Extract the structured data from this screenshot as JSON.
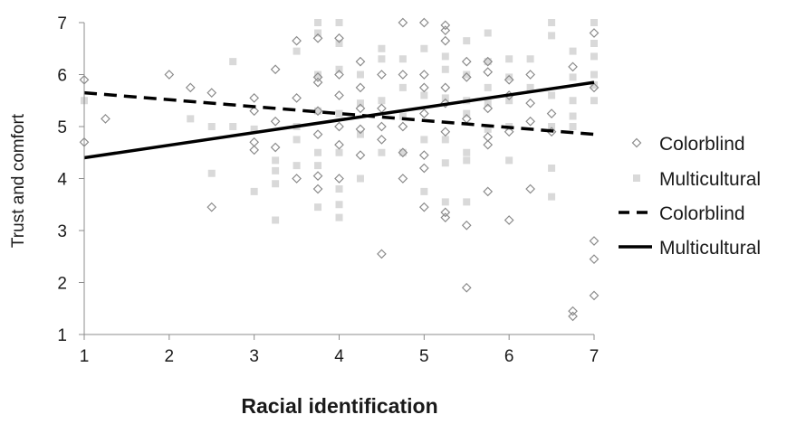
{
  "chart_data": {
    "type": "scatter",
    "title": "",
    "xlabel": "Racial identification",
    "ylabel": "Trust and comfort",
    "xlim": [
      1,
      7
    ],
    "ylim": [
      1,
      7
    ],
    "x_ticks": [
      1,
      2,
      3,
      4,
      5,
      6,
      7
    ],
    "y_ticks": [
      1,
      2,
      3,
      4,
      5,
      6,
      7
    ],
    "grid": false,
    "legend_position": "right",
    "series": [
      {
        "name": "Colorblind",
        "kind": "points",
        "marker": "diamond-open",
        "color": "#8a8a8a",
        "points": [
          [
            1,
            5.9
          ],
          [
            1,
            4.7
          ],
          [
            1.25,
            5.15
          ],
          [
            2,
            6.0
          ],
          [
            2.25,
            5.75
          ],
          [
            2.5,
            5.65
          ],
          [
            2.5,
            3.45
          ],
          [
            3,
            5.55
          ],
          [
            3,
            5.3
          ],
          [
            3,
            4.7
          ],
          [
            3,
            4.55
          ],
          [
            3.25,
            6.1
          ],
          [
            3.25,
            5.1
          ],
          [
            3.25,
            4.6
          ],
          [
            3.5,
            6.65
          ],
          [
            3.5,
            5.55
          ],
          [
            3.5,
            4.0
          ],
          [
            3.75,
            6.7
          ],
          [
            3.75,
            5.95
          ],
          [
            3.75,
            5.85
          ],
          [
            3.75,
            5.3
          ],
          [
            3.75,
            4.85
          ],
          [
            3.75,
            4.05
          ],
          [
            3.75,
            3.8
          ],
          [
            4,
            6.7
          ],
          [
            4,
            6.0
          ],
          [
            4,
            5.6
          ],
          [
            4,
            5.0
          ],
          [
            4,
            4.65
          ],
          [
            4,
            4.0
          ],
          [
            4.25,
            6.25
          ],
          [
            4.25,
            5.75
          ],
          [
            4.25,
            5.35
          ],
          [
            4.25,
            4.95
          ],
          [
            4.25,
            4.45
          ],
          [
            4.5,
            6.0
          ],
          [
            4.5,
            5.35
          ],
          [
            4.5,
            5.0
          ],
          [
            4.5,
            4.75
          ],
          [
            4.5,
            2.55
          ],
          [
            4.75,
            7.0
          ],
          [
            4.75,
            6.0
          ],
          [
            4.75,
            5.0
          ],
          [
            4.75,
            4.5
          ],
          [
            4.75,
            4.0
          ],
          [
            5,
            7.0
          ],
          [
            5,
            6.0
          ],
          [
            5,
            5.75
          ],
          [
            5,
            5.25
          ],
          [
            5,
            4.45
          ],
          [
            5,
            4.2
          ],
          [
            5,
            3.45
          ],
          [
            5.25,
            6.95
          ],
          [
            5.25,
            6.85
          ],
          [
            5.25,
            6.65
          ],
          [
            5.25,
            5.75
          ],
          [
            5.25,
            5.45
          ],
          [
            5.25,
            4.9
          ],
          [
            5.25,
            3.35
          ],
          [
            5.25,
            3.25
          ],
          [
            5.5,
            6.25
          ],
          [
            5.5,
            5.95
          ],
          [
            5.5,
            5.15
          ],
          [
            5.5,
            3.1
          ],
          [
            5.5,
            1.9
          ],
          [
            5.75,
            6.25
          ],
          [
            5.75,
            6.05
          ],
          [
            5.75,
            5.35
          ],
          [
            5.75,
            4.8
          ],
          [
            5.75,
            4.65
          ],
          [
            5.75,
            3.75
          ],
          [
            6,
            5.9
          ],
          [
            6,
            5.6
          ],
          [
            6,
            4.9
          ],
          [
            6,
            3.2
          ],
          [
            6.25,
            6.0
          ],
          [
            6.25,
            5.45
          ],
          [
            6.25,
            5.1
          ],
          [
            6.25,
            3.8
          ],
          [
            6.5,
            5.25
          ],
          [
            6.5,
            4.9
          ],
          [
            6.75,
            6.15
          ],
          [
            6.75,
            1.45
          ],
          [
            6.75,
            1.35
          ],
          [
            7,
            6.8
          ],
          [
            7,
            5.75
          ],
          [
            7,
            2.8
          ],
          [
            7,
            2.45
          ],
          [
            7,
            1.75
          ]
        ]
      },
      {
        "name": "Multicultural",
        "kind": "points",
        "marker": "square-filled",
        "color": "#d9d9d9",
        "points": [
          [
            1,
            5.5
          ],
          [
            2.25,
            5.15
          ],
          [
            2.5,
            5.0
          ],
          [
            2.5,
            4.1
          ],
          [
            2.75,
            6.25
          ],
          [
            2.75,
            5.0
          ],
          [
            3,
            4.95
          ],
          [
            3,
            3.75
          ],
          [
            3.25,
            4.35
          ],
          [
            3.25,
            4.15
          ],
          [
            3.25,
            3.9
          ],
          [
            3.25,
            3.2
          ],
          [
            3.5,
            6.45
          ],
          [
            3.5,
            5.0
          ],
          [
            3.5,
            4.75
          ],
          [
            3.5,
            4.25
          ],
          [
            3.75,
            7.0
          ],
          [
            3.75,
            6.8
          ],
          [
            3.75,
            6.0
          ],
          [
            3.75,
            5.3
          ],
          [
            3.75,
            4.5
          ],
          [
            3.75,
            4.25
          ],
          [
            3.75,
            3.45
          ],
          [
            4,
            7.0
          ],
          [
            4,
            6.6
          ],
          [
            4,
            6.1
          ],
          [
            4,
            5.25
          ],
          [
            4,
            4.5
          ],
          [
            4,
            3.8
          ],
          [
            4,
            3.5
          ],
          [
            4,
            3.25
          ],
          [
            4.25,
            6.0
          ],
          [
            4.25,
            5.45
          ],
          [
            4.25,
            4.85
          ],
          [
            4.25,
            4.0
          ],
          [
            4.5,
            6.5
          ],
          [
            4.5,
            6.3
          ],
          [
            4.5,
            5.5
          ],
          [
            4.5,
            4.5
          ],
          [
            4.75,
            6.3
          ],
          [
            4.75,
            5.75
          ],
          [
            4.75,
            5.2
          ],
          [
            4.75,
            4.5
          ],
          [
            5,
            6.5
          ],
          [
            5,
            5.6
          ],
          [
            5,
            4.75
          ],
          [
            5,
            3.75
          ],
          [
            5.25,
            6.35
          ],
          [
            5.25,
            6.1
          ],
          [
            5.25,
            5.55
          ],
          [
            5.25,
            4.75
          ],
          [
            5.25,
            4.3
          ],
          [
            5.25,
            3.55
          ],
          [
            5.5,
            6.65
          ],
          [
            5.5,
            6.0
          ],
          [
            5.5,
            5.5
          ],
          [
            5.5,
            5.25
          ],
          [
            5.5,
            4.5
          ],
          [
            5.5,
            4.35
          ],
          [
            5.5,
            3.55
          ],
          [
            5.75,
            6.8
          ],
          [
            5.75,
            6.25
          ],
          [
            5.75,
            5.75
          ],
          [
            5.75,
            5.45
          ],
          [
            5.75,
            4.95
          ],
          [
            6,
            6.3
          ],
          [
            6,
            5.95
          ],
          [
            6,
            5.5
          ],
          [
            6,
            5.0
          ],
          [
            6,
            4.35
          ],
          [
            6.25,
            6.3
          ],
          [
            6.25,
            5.75
          ],
          [
            6.5,
            7.0
          ],
          [
            6.5,
            6.75
          ],
          [
            6.5,
            5.6
          ],
          [
            6.5,
            5.0
          ],
          [
            6.5,
            4.2
          ],
          [
            6.5,
            3.65
          ],
          [
            6.75,
            6.45
          ],
          [
            6.75,
            5.95
          ],
          [
            6.75,
            5.5
          ],
          [
            6.75,
            5.2
          ],
          [
            6.75,
            5.0
          ],
          [
            7,
            7.0
          ],
          [
            7,
            6.6
          ],
          [
            7,
            6.35
          ],
          [
            7,
            6.0
          ],
          [
            7,
            5.8
          ],
          [
            7,
            5.5
          ]
        ]
      },
      {
        "name": "Colorblind",
        "kind": "line",
        "style": "dashed",
        "color": "#000000",
        "points": [
          [
            1,
            5.65
          ],
          [
            7,
            4.85
          ]
        ]
      },
      {
        "name": "Multicultural",
        "kind": "line",
        "style": "solid",
        "color": "#000000",
        "points": [
          [
            1,
            4.4
          ],
          [
            7,
            5.85
          ]
        ]
      }
    ]
  }
}
